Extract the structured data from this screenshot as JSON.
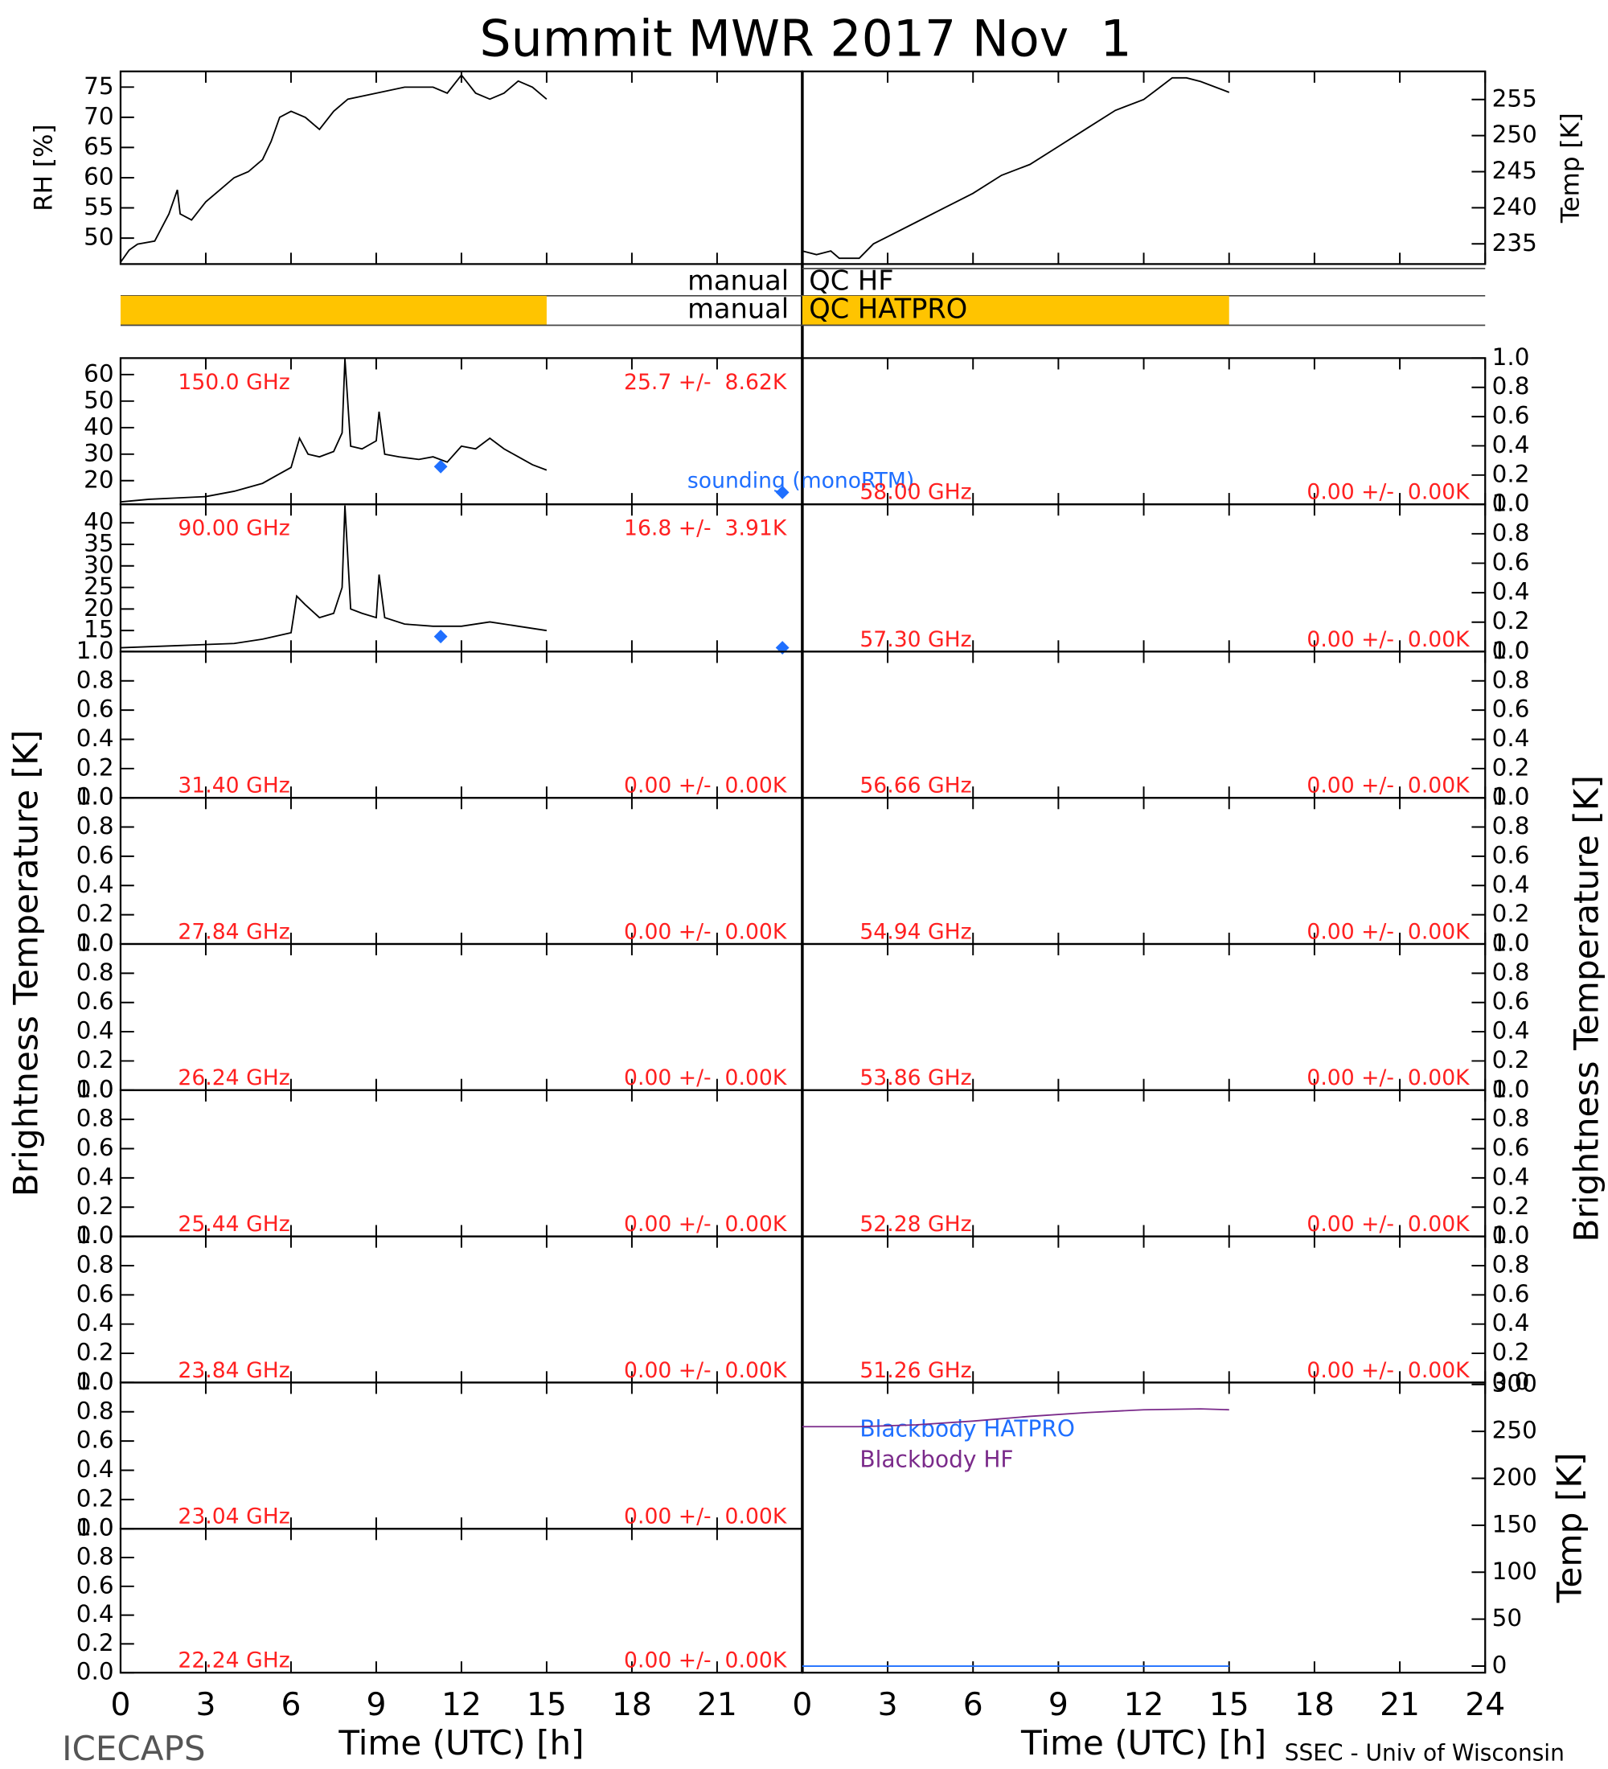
{
  "title": "Summit MWR 2017 Nov  1",
  "footer_left": "ICECAPS",
  "footer_right": "SSEC - Univ of Wisconsin",
  "bt_label": "Brightness Temperature [K]",
  "chart_data": [
    {
      "type": "line",
      "ylabel": "RH [%]",
      "xlim": [
        0,
        24
      ],
      "ylim": [
        45.7,
        77.6
      ],
      "yticks": [
        50,
        55,
        60,
        65,
        70,
        75
      ],
      "series": [
        {
          "color": "#000000",
          "x": [
            0,
            0.3,
            0.6,
            1.2,
            1.7,
            2.0,
            2.1,
            2.5,
            3,
            3.5,
            4,
            4.5,
            5,
            5.3,
            5.6,
            6,
            6.5,
            7,
            7.5,
            8,
            9,
            10,
            11,
            11.5,
            12,
            12.5,
            13,
            13.5,
            14,
            14.5,
            15
          ],
          "values": [
            46,
            48,
            49,
            49.5,
            54,
            58,
            54,
            53,
            56,
            58,
            60,
            61,
            63,
            66,
            70,
            71,
            70,
            68,
            71,
            73,
            74,
            75,
            75,
            74,
            77,
            74,
            73,
            74,
            76,
            75,
            73
          ]
        }
      ]
    },
    {
      "type": "line",
      "ylabel": "Temp [K]",
      "xlim": [
        0,
        24
      ],
      "ylim": [
        232.2,
        258.9
      ],
      "yticks": [
        235,
        240,
        245,
        250,
        255
      ],
      "series": [
        {
          "color": "#000000",
          "x": [
            0,
            0.5,
            1,
            1.3,
            2,
            2.5,
            3,
            4,
            5,
            6,
            7,
            8,
            9,
            10,
            11,
            12,
            12.5,
            13,
            13.5,
            14,
            15
          ],
          "values": [
            234,
            233.5,
            234,
            233,
            233,
            235,
            236,
            238,
            240,
            242,
            244.5,
            246,
            248.5,
            251,
            253.5,
            255,
            256.5,
            258,
            258,
            257.5,
            256
          ]
        }
      ]
    },
    {
      "type": "qc",
      "xlim": [
        0,
        24
      ],
      "rows": [
        {
          "status": "manual",
          "name": "QC HF",
          "segments": []
        },
        {
          "status": "manual",
          "name": "QC HATPRO",
          "color": "#ffc400",
          "segments": [
            [
              0,
              15
            ]
          ]
        }
      ]
    },
    {
      "type": "line",
      "label": "150.0 GHz",
      "stats": "25.7 +/-  8.62K",
      "xlim": [
        0,
        24
      ],
      "ylim": [
        11.1,
        66.2
      ],
      "yticks": [
        20,
        30,
        40,
        50,
        60
      ],
      "series": [
        {
          "color": "#000000",
          "x": [
            0,
            1,
            2,
            3,
            4,
            5,
            5.5,
            6,
            6.3,
            6.6,
            7,
            7.5,
            7.8,
            7.9,
            8.1,
            8.5,
            9,
            9.1,
            9.3,
            9.8,
            10.5,
            11,
            11.5,
            12,
            12.5,
            13,
            13.5,
            14,
            14.5,
            15
          ],
          "values": [
            12,
            13,
            13.5,
            14,
            16,
            19,
            22,
            25,
            36,
            30,
            29,
            31,
            38,
            66,
            33,
            32,
            35,
            46,
            30,
            29,
            28,
            29,
            27,
            33,
            32,
            36,
            32,
            29,
            26,
            24
          ]
        },
        {
          "type": "scatter",
          "name": "sounding (monoRTM)",
          "color": "#1f6fff",
          "x": [
            11.27,
            23.3
          ],
          "values": [
            25.3,
            15.6
          ]
        }
      ]
    },
    {
      "type": "line",
      "label": "90.00 GHz",
      "stats": "16.8 +/-  3.91K",
      "xlim": [
        0,
        24
      ],
      "ylim": [
        10.1,
        44.3
      ],
      "yticks": [
        15,
        20,
        25,
        30,
        35,
        40
      ],
      "series": [
        {
          "color": "#000000",
          "x": [
            0,
            2,
            4,
            5,
            6,
            6.2,
            6.5,
            7,
            7.5,
            7.8,
            7.9,
            8.1,
            8.5,
            9,
            9.1,
            9.3,
            10,
            11,
            12,
            13,
            14,
            15
          ],
          "values": [
            11,
            11.5,
            12,
            13,
            14.5,
            23,
            21,
            18,
            19,
            25,
            44,
            20,
            19,
            18,
            28,
            18,
            16.5,
            16,
            16,
            17,
            16,
            15
          ]
        },
        {
          "type": "scatter",
          "color": "#1f6fff",
          "x": [
            11.27,
            23.3
          ],
          "values": [
            13.6,
            11
          ]
        }
      ]
    },
    {
      "type": "line",
      "label": "31.40 GHz",
      "stats": "0.00 +/-  0.00K",
      "xlim": [
        0,
        24
      ],
      "ylim": [
        0,
        1
      ],
      "yticks": [
        {
          "value": 0,
          "label": "0.0"
        },
        0.2,
        0.4,
        0.6,
        0.8,
        {
          "value": 1,
          "label": "1.0"
        }
      ],
      "series": []
    },
    {
      "type": "line",
      "label": "27.84 GHz",
      "stats": "0.00 +/-  0.00K",
      "xlim": [
        0,
        24
      ],
      "ylim": [
        0,
        1
      ],
      "yticks": [
        {
          "value": 0,
          "label": "0.0"
        },
        0.2,
        0.4,
        0.6,
        0.8,
        {
          "value": 1,
          "label": "1.0"
        }
      ],
      "series": []
    },
    {
      "type": "line",
      "label": "26.24 GHz",
      "stats": "0.00 +/-  0.00K",
      "xlim": [
        0,
        24
      ],
      "ylim": [
        0,
        1
      ],
      "yticks": [
        {
          "value": 0,
          "label": "0.0"
        },
        0.2,
        0.4,
        0.6,
        0.8,
        {
          "value": 1,
          "label": "1.0"
        }
      ],
      "series": []
    },
    {
      "type": "line",
      "label": "25.44 GHz",
      "stats": "0.00 +/-  0.00K",
      "xlim": [
        0,
        24
      ],
      "ylim": [
        0,
        1
      ],
      "yticks": [
        {
          "value": 0,
          "label": "0.0"
        },
        0.2,
        0.4,
        0.6,
        0.8,
        {
          "value": 1,
          "label": "1.0"
        }
      ],
      "series": []
    },
    {
      "type": "line",
      "label": "23.84 GHz",
      "stats": "0.00 +/-  0.00K",
      "xlim": [
        0,
        24
      ],
      "ylim": [
        0,
        1
      ],
      "yticks": [
        {
          "value": 0,
          "label": "0.0"
        },
        0.2,
        0.4,
        0.6,
        0.8,
        {
          "value": 1,
          "label": "1.0"
        }
      ],
      "series": []
    },
    {
      "type": "line",
      "label": "23.04 GHz",
      "stats": "0.00 +/-  0.00K",
      "xlim": [
        0,
        24
      ],
      "ylim": [
        0,
        1
      ],
      "yticks": [
        {
          "value": 0,
          "label": "0.0"
        },
        0.2,
        0.4,
        0.6,
        0.8,
        {
          "value": 1,
          "label": "1.0"
        }
      ],
      "series": []
    },
    {
      "type": "line",
      "label": "22.24 GHz",
      "stats": "0.00 +/-  0.00K",
      "xlim": [
        0,
        24
      ],
      "ylim": [
        0,
        1
      ],
      "yticks": [
        {
          "value": 0,
          "label": "0.0"
        },
        0.2,
        0.4,
        0.6,
        0.8,
        {
          "value": 1,
          "label": "1.0"
        }
      ],
      "series": [],
      "xticks": [
        0,
        3,
        6,
        9,
        12,
        15,
        18,
        21
      ],
      "xlabel": "Time (UTC) [h]"
    },
    {
      "type": "line",
      "label": "58.00 GHz",
      "stats": "0.00 +/-  0.00K",
      "xlim": [
        0,
        24
      ],
      "ylim": [
        0,
        1
      ],
      "yticks": [
        {
          "value": 0,
          "label": "0.0"
        },
        0.2,
        0.4,
        0.6,
        0.8,
        {
          "value": 1,
          "label": "1.0"
        }
      ],
      "series": []
    },
    {
      "type": "line",
      "label": "57.30 GHz",
      "stats": "0.00 +/-  0.00K",
      "xlim": [
        0,
        24
      ],
      "ylim": [
        0,
        1
      ],
      "yticks": [
        {
          "value": 0,
          "label": "0.0"
        },
        0.2,
        0.4,
        0.6,
        0.8,
        {
          "value": 1,
          "label": "1.0"
        }
      ],
      "series": []
    },
    {
      "type": "line",
      "label": "56.66 GHz",
      "stats": "0.00 +/-  0.00K",
      "xlim": [
        0,
        24
      ],
      "ylim": [
        0,
        1
      ],
      "yticks": [
        {
          "value": 0,
          "label": "0.0"
        },
        0.2,
        0.4,
        0.6,
        0.8,
        {
          "value": 1,
          "label": "1.0"
        }
      ],
      "series": []
    },
    {
      "type": "line",
      "label": "54.94 GHz",
      "stats": "0.00 +/-  0.00K",
      "xlim": [
        0,
        24
      ],
      "ylim": [
        0,
        1
      ],
      "yticks": [
        {
          "value": 0,
          "label": "0.0"
        },
        0.2,
        0.4,
        0.6,
        0.8,
        {
          "value": 1,
          "label": "1.0"
        }
      ],
      "series": []
    },
    {
      "type": "line",
      "label": "53.86 GHz",
      "stats": "0.00 +/-  0.00K",
      "xlim": [
        0,
        24
      ],
      "ylim": [
        0,
        1
      ],
      "yticks": [
        {
          "value": 0,
          "label": "0.0"
        },
        0.2,
        0.4,
        0.6,
        0.8,
        {
          "value": 1,
          "label": "1.0"
        }
      ],
      "series": []
    },
    {
      "type": "line",
      "label": "52.28 GHz",
      "stats": "0.00 +/-  0.00K",
      "xlim": [
        0,
        24
      ],
      "ylim": [
        0,
        1
      ],
      "yticks": [
        {
          "value": 0,
          "label": "0.0"
        },
        0.2,
        0.4,
        0.6,
        0.8,
        {
          "value": 1,
          "label": "1.0"
        }
      ],
      "series": []
    },
    {
      "type": "line",
      "label": "51.26 GHz",
      "stats": "0.00 +/-  0.00K",
      "xlim": [
        0,
        24
      ],
      "ylim": [
        0,
        1
      ],
      "yticks": [
        {
          "value": 0,
          "label": "0.0"
        },
        0.2,
        0.4,
        0.6,
        0.8,
        {
          "value": 1,
          "label": "1.0"
        }
      ],
      "series": []
    },
    {
      "type": "line",
      "ylabel": "Temp [K]",
      "xlim": [
        0,
        24
      ],
      "ylim": [
        -7,
        302
      ],
      "yticks": [
        0,
        50,
        100,
        150,
        200,
        250,
        300
      ],
      "xticks": [
        0,
        3,
        6,
        9,
        12,
        15,
        18,
        21,
        24
      ],
      "xlabel": "Time (UTC) [h]",
      "series": [
        {
          "name": "Blackbody HATPRO",
          "color": "#1f6fff",
          "x": [
            0,
            15
          ],
          "values": [
            0,
            0
          ]
        },
        {
          "name": "Blackbody HF",
          "color": "#7a2a8a",
          "x": [
            0,
            2,
            4,
            6,
            8,
            10,
            12,
            14,
            15
          ],
          "values": [
            255,
            255,
            257,
            261,
            266,
            270,
            273,
            274,
            273
          ]
        }
      ]
    }
  ]
}
